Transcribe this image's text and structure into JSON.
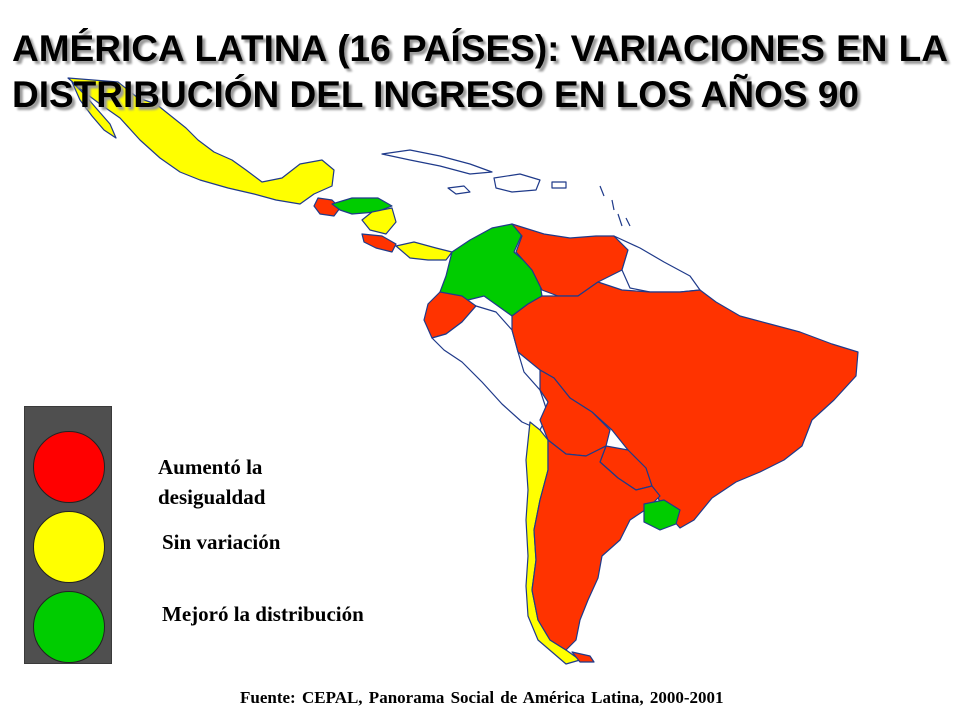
{
  "title": "AMÉRICA LATINA (16 PAÍSES): VARIACIONES EN LA DISTRIBUCIÓN DEL INGRESO EN LOS AÑOS 90",
  "source": "Fuente: CEPAL, Panorama Social de América Latina, 2000-2001",
  "colors": {
    "red": "#ff3300",
    "yellow": "#ffff00",
    "green": "#00cc00",
    "border": "#1f3a8a",
    "no_data": "#ffffff"
  },
  "legend": [
    {
      "status": "red",
      "label_line1": "Aumentó la",
      "label_line2": "desigualdad"
    },
    {
      "status": "yellow",
      "label": "Sin variación"
    },
    {
      "status": "green",
      "label": "Mejoró la distribución"
    }
  ],
  "icons": {
    "legend": "traffic-light-icon"
  }
}
